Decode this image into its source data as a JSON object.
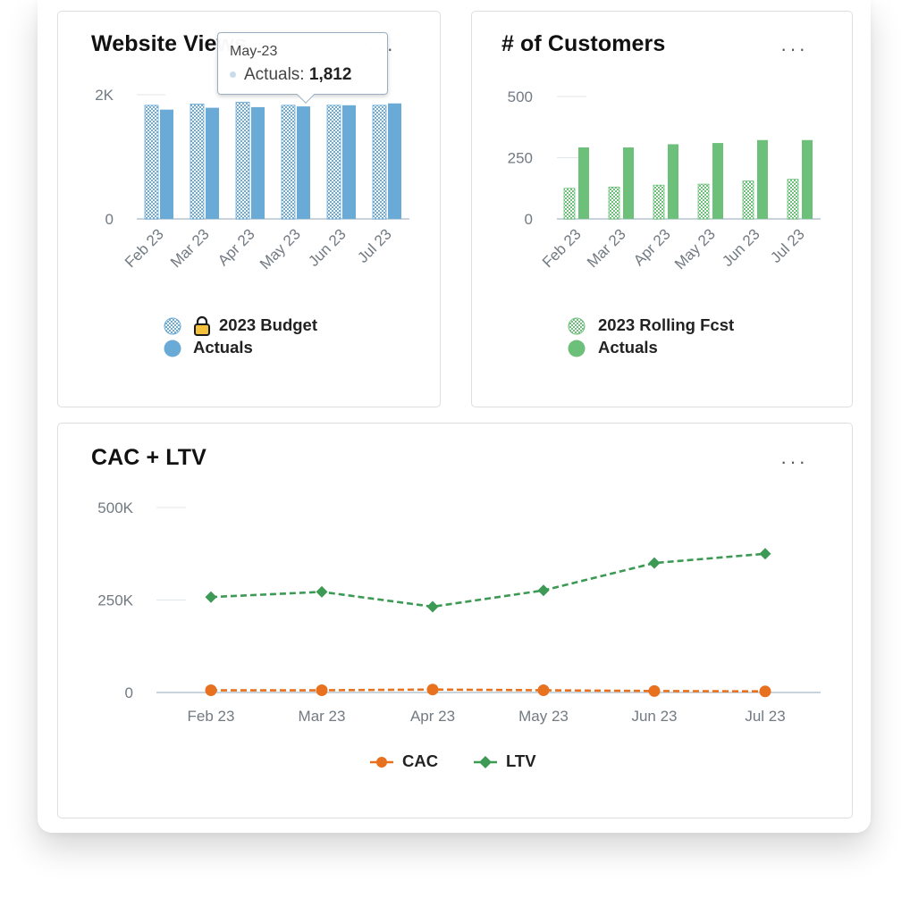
{
  "colors": {
    "blue": "#6aaad6",
    "green": "#6cc07a",
    "orange": "#e8711f",
    "ltv_green": "#3d9a55",
    "axis": "#c8d3dc",
    "tick": "#727a82",
    "lock": "#f3c13a"
  },
  "cards": {
    "website_views": {
      "title": "Website Views",
      "menu": "···",
      "tooltip": {
        "date": "May-23",
        "series": "Actuals:",
        "value": "1,812"
      }
    },
    "customers": {
      "title": "# of Customers",
      "menu": "···"
    },
    "cac_ltv": {
      "title": "CAC + LTV",
      "menu": "···"
    }
  },
  "chart_data": [
    {
      "type": "bar",
      "title": "Website Views",
      "categories": [
        "Feb 23",
        "Mar 23",
        "Apr 23",
        "May 23",
        "Jun 23",
        "Jul 23"
      ],
      "series": [
        {
          "name": "2023 Budget",
          "pattern": "checkered",
          "locked": true,
          "values": [
            1830,
            1850,
            1880,
            1830,
            1830,
            1830
          ]
        },
        {
          "name": "Actuals",
          "values": [
            1760,
            1790,
            1800,
            1812,
            1830,
            1860
          ]
        }
      ],
      "ylim": [
        0,
        2000
      ],
      "yticks": [
        {
          "value": 0,
          "label": "0"
        },
        {
          "value": 2000,
          "label": "2K"
        }
      ],
      "legend": "bottom"
    },
    {
      "type": "bar",
      "title": "# of Customers",
      "categories": [
        "Feb 23",
        "Mar 23",
        "Apr 23",
        "May 23",
        "Jun 23",
        "Jul 23"
      ],
      "series": [
        {
          "name": "2023 Rolling Fcst",
          "pattern": "checkered",
          "values": [
            125,
            130,
            138,
            142,
            155,
            162
          ]
        },
        {
          "name": "Actuals",
          "values": [
            292,
            292,
            305,
            310,
            322,
            322
          ]
        }
      ],
      "ylim": [
        0,
        500
      ],
      "yticks": [
        {
          "value": 0,
          "label": "0"
        },
        {
          "value": 250,
          "label": "250"
        },
        {
          "value": 500,
          "label": "500"
        }
      ],
      "legend": "bottom"
    },
    {
      "type": "line",
      "title": "CAC + LTV",
      "categories": [
        "Feb 23",
        "Mar 23",
        "Apr 23",
        "May 23",
        "Jun 23",
        "Jul 23"
      ],
      "series": [
        {
          "name": "CAC",
          "marker": "circle",
          "values": [
            6000,
            6000,
            8000,
            6000,
            4000,
            3000
          ]
        },
        {
          "name": "LTV",
          "marker": "diamond",
          "values": [
            258000,
            272000,
            232000,
            276000,
            350000,
            375000
          ]
        }
      ],
      "ylim": [
        0,
        500000
      ],
      "yticks": [
        {
          "value": 0,
          "label": "0"
        },
        {
          "value": 250000,
          "label": "250K"
        },
        {
          "value": 500000,
          "label": "500K"
        }
      ],
      "legend": "bottom"
    }
  ]
}
